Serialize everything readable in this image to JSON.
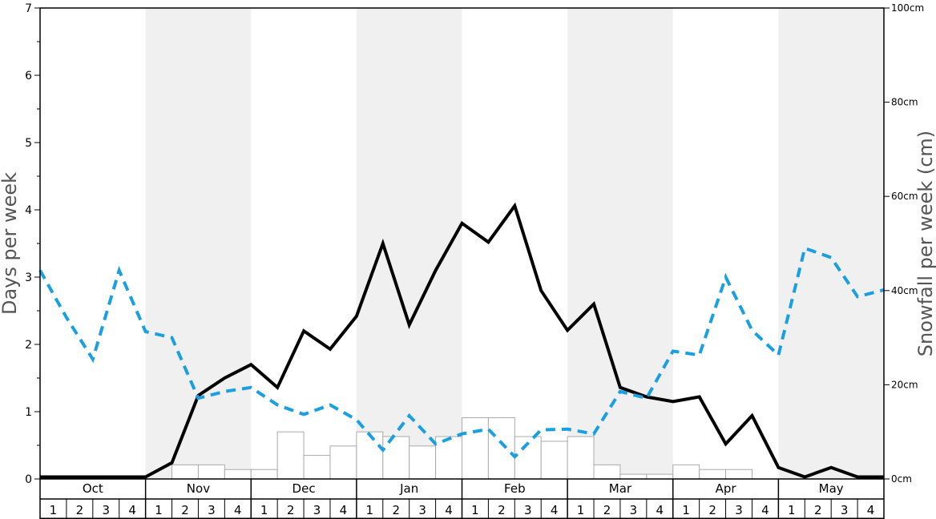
{
  "chart_data": {
    "type": "bar+line",
    "ylabel_left": "Days per week",
    "ylabel_right": "Snowfall per week (cm)",
    "ylim_left": [
      0,
      7
    ],
    "ylim_right": [
      0,
      100
    ],
    "yticks_left": [
      "0",
      "1",
      "2",
      "3",
      "4",
      "5",
      "6",
      "7"
    ],
    "yticks_right": [
      "0cm",
      "20cm",
      "40cm",
      "60cm",
      "80cm",
      "100cm"
    ],
    "months": [
      "Oct",
      "Nov",
      "Dec",
      "Jan",
      "Feb",
      "Mar",
      "Apr",
      "May"
    ],
    "weeks_per_month": [
      "1",
      "2",
      "3",
      "4"
    ],
    "shaded_months": [
      "Nov",
      "Jan",
      "Mar",
      "May"
    ],
    "colors": {
      "bars_fill": "#ffffff",
      "bars_stroke": "#aaaaaa",
      "black_line": "#000000",
      "blue_dashed_line": "#1a9fe0",
      "shade": "#f0f0f0"
    },
    "series": [
      {
        "kind": "bar",
        "axis": "right",
        "values": [
          0,
          0,
          0,
          0,
          0,
          3,
          3,
          2,
          2,
          10,
          5,
          7,
          10,
          9,
          7,
          9,
          13,
          13,
          9,
          8,
          9,
          3,
          1,
          1,
          3,
          2,
          2,
          0,
          0,
          0,
          0,
          0
        ]
      },
      {
        "kind": "line",
        "style": "solid",
        "axis": "left",
        "values": [
          0.03,
          0.03,
          0.03,
          0.03,
          0.03,
          0.24,
          1.24,
          1.5,
          1.7,
          1.36,
          2.2,
          1.93,
          2.42,
          3.5,
          2.29,
          3.1,
          3.8,
          3.52,
          4.06,
          2.8,
          2.21,
          2.6,
          1.36,
          1.22,
          1.15,
          1.22,
          0.52,
          0.94,
          0.17,
          0.03,
          0.17,
          0.03,
          0.03
        ]
      },
      {
        "kind": "line",
        "style": "dashed",
        "axis": "left",
        "values": [
          3.1,
          2.4,
          1.78,
          3.1,
          2.19,
          2.1,
          1.2,
          1.3,
          1.36,
          1.1,
          0.96,
          1.1,
          0.88,
          0.43,
          0.94,
          0.52,
          0.67,
          0.74,
          0.33,
          0.73,
          0.74,
          0.67,
          1.3,
          1.2,
          1.9,
          1.84,
          3.0,
          2.21,
          1.84,
          3.43,
          3.29,
          2.71,
          2.81
        ]
      }
    ]
  }
}
